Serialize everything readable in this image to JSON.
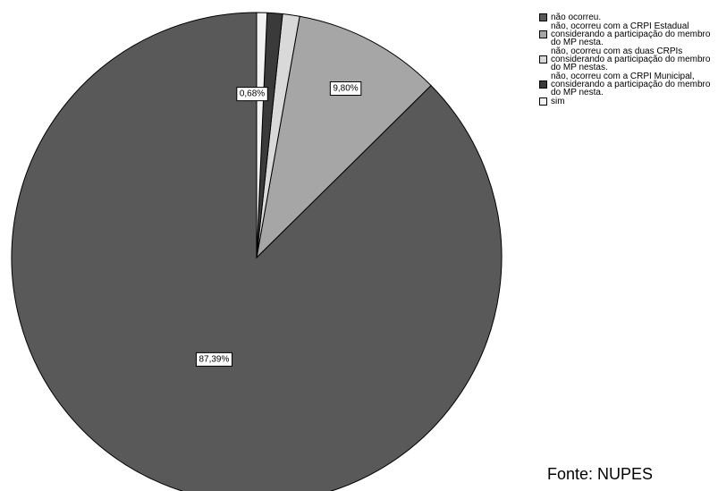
{
  "chart_data": {
    "type": "pie",
    "slices": [
      {
        "label": "não ocorreu.",
        "value": 87.39,
        "data_label": "87,39%",
        "color": "#595959"
      },
      {
        "label": "não, ocorreu com a CRPI Estadual considerando a participação do membro do MP nesta.",
        "value": 9.8,
        "data_label": "9,80%",
        "color": "#a6a6a6"
      },
      {
        "label": "não, ocorreu com as duas CRPIs considerando a participação do membro do MP nestas.",
        "value": 1.12,
        "data_label": "",
        "color": "#d9d9d9"
      },
      {
        "label": "não, ocorreu com a CRPI Municipal, considerando a participação do membro do MP nesta.",
        "value": 1.01,
        "data_label": "",
        "color": "#3a3a3a"
      },
      {
        "label": "sim",
        "value": 0.68,
        "data_label": "0,68%",
        "color": "#f2f2f2"
      }
    ],
    "legend_position": "right"
  },
  "source_text": "Fonte: NUPES"
}
